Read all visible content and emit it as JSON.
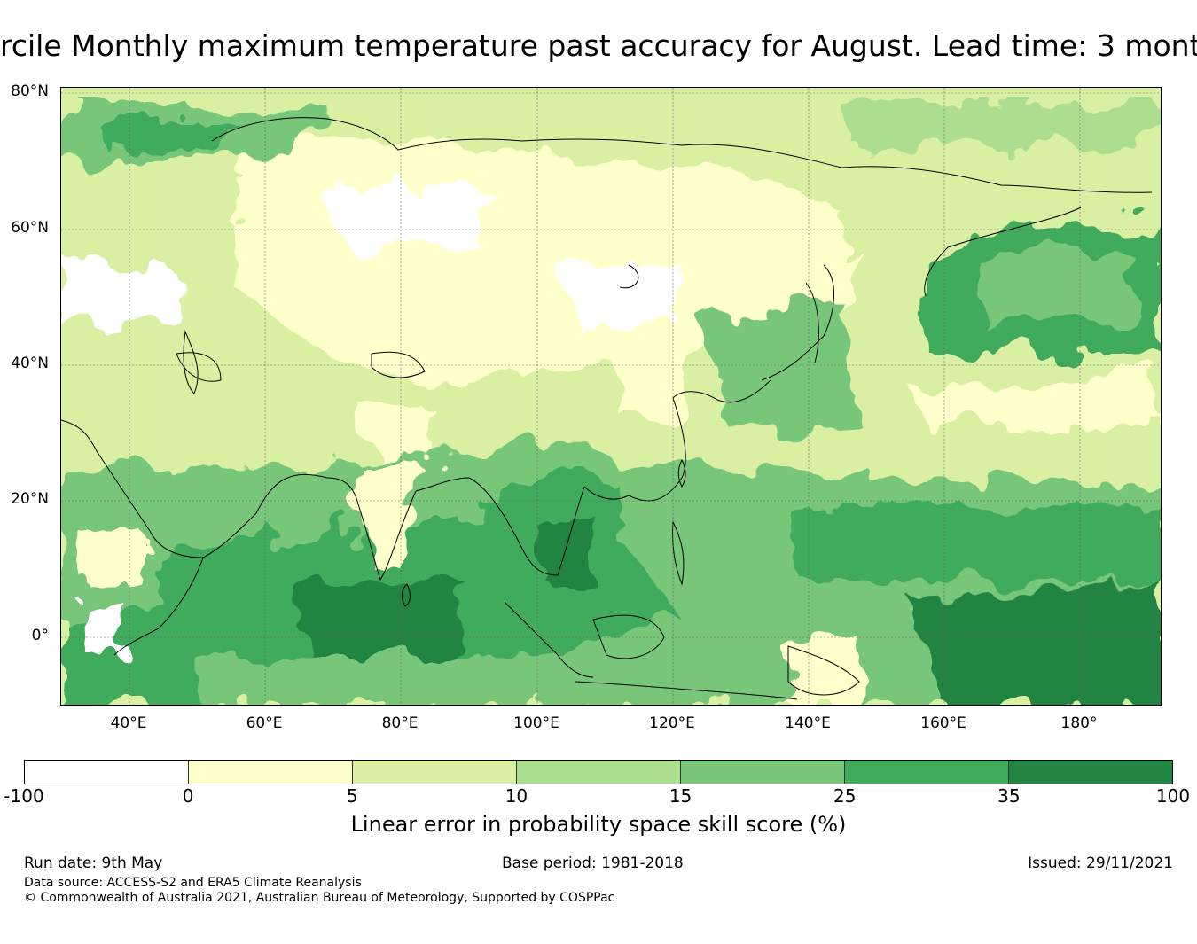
{
  "title": "rcile Monthly maximum temperature past accuracy for August. Lead time: 3 mont",
  "map": {
    "lat_labels": [
      "80°N",
      "60°N",
      "40°N",
      "20°N",
      "0°"
    ],
    "lon_labels": [
      "40°E",
      "60°E",
      "80°E",
      "100°E",
      "120°E",
      "140°E",
      "160°E",
      "180°"
    ]
  },
  "colorbar": {
    "ticks": [
      "-100",
      "0",
      "5",
      "10",
      "15",
      "25",
      "35",
      "100"
    ],
    "colors": [
      "#ffffff",
      "#ffffcc",
      "#d9f0a3",
      "#addd8e",
      "#78c679",
      "#41ab5d",
      "#238443"
    ],
    "label": "Linear error in probability space skill score (%)"
  },
  "footer": {
    "run_date": "Run date: 9th May",
    "base_period": "Base period: 1981-2018",
    "issued": "Issued: 29/11/2021",
    "data_source": "Data source: ACCESS-S2 and ERA5 Climate Reanalysis",
    "copyright": "© Commonwealth of Australia 2021, Australian Bureau of Meteorology, Supported by COSPPac"
  }
}
